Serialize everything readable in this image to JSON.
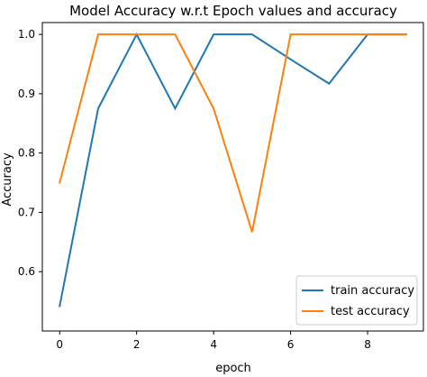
{
  "chart_data": {
    "type": "line",
    "title": "Model Accuracy w.r.t Epoch values and accuracy",
    "xlabel": "epoch",
    "ylabel": "Accuracy",
    "x": [
      0,
      1,
      2,
      3,
      4,
      5,
      6,
      7,
      8,
      9
    ],
    "xlim": [
      -0.45,
      9.45
    ],
    "ylim": [
      0.5,
      1.02
    ],
    "xticks": [
      "0",
      "2",
      "4",
      "6",
      "8"
    ],
    "xtick_values": [
      0,
      2,
      4,
      6,
      8
    ],
    "yticks": [
      "0.6",
      "0.7",
      "0.8",
      "0.9",
      "1.0"
    ],
    "ytick_values": [
      0.6,
      0.7,
      0.8,
      0.9,
      1.0
    ],
    "grid": false,
    "legend_position": "bottom-right",
    "series": [
      {
        "name": "train accuracy",
        "color": "#1f77b4",
        "values": [
          0.542,
          0.875,
          1.0,
          0.875,
          1.0,
          1.0,
          0.958,
          0.917,
          1.0,
          1.0
        ]
      },
      {
        "name": "test accuracy",
        "color": "#ff7f0e",
        "values": [
          0.75,
          1.0,
          1.0,
          1.0,
          0.875,
          0.667,
          1.0,
          1.0,
          1.0,
          1.0
        ]
      }
    ]
  }
}
